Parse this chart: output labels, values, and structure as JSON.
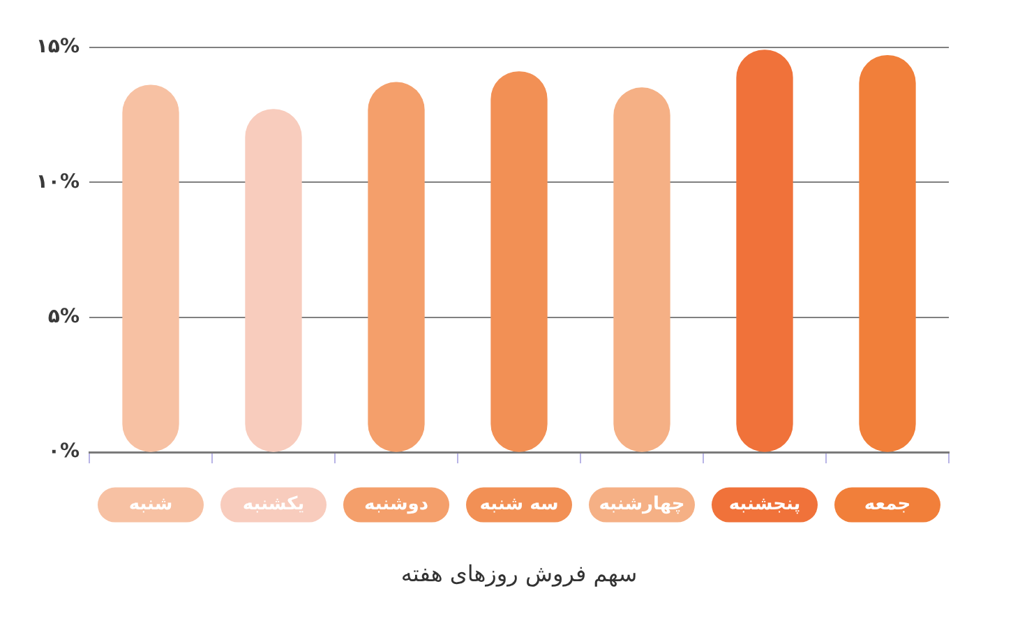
{
  "chart_data": {
    "type": "bar",
    "xlabel": "سهم فروش روزهای هفته",
    "categories": [
      "شنبه",
      "یکشنبه",
      "دوشنبه",
      "سه شنبه",
      "چهارشنبه",
      "پنجشنبه",
      "جمعه"
    ],
    "values": [
      13.6,
      12.7,
      13.7,
      14.1,
      13.5,
      14.9,
      14.7
    ],
    "colors": [
      "#f7c1a3",
      "#f8ccbd",
      "#f49f6b",
      "#f29055",
      "#f5b085",
      "#f0723a",
      "#f17f3a"
    ],
    "ylim": [
      0,
      15
    ],
    "yticks": [
      {
        "value": 0,
        "label": "۰%"
      },
      {
        "value": 5,
        "label": "۵%"
      },
      {
        "value": 10,
        "label": "۱۰%"
      },
      {
        "value": 15,
        "label": "۱۵%"
      }
    ],
    "grid": "y"
  }
}
